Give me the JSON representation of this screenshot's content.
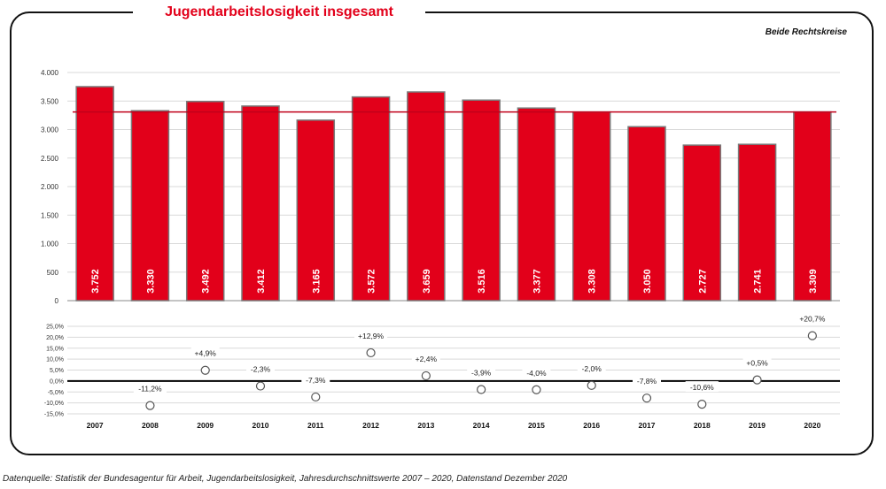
{
  "title": "Jugendarbeitslosigkeit insgesamt",
  "subtitle": "Beide Rechtskreise",
  "source": "Datenquelle: Statistik der Bundesagentur für Arbeit, Jugendarbeitslosigkeit, Jahresdurchschnittswerte 2007 – 2020, Datenstand Dezember 2020",
  "colors": {
    "bar": "#e2001a",
    "bar_edge": "#7a7a7a",
    "avg_line": "#c0001a",
    "grid": "#d9d9d9",
    "axis": "#333333"
  },
  "chart_data": [
    {
      "type": "bar",
      "categories": [
        "2007",
        "2008",
        "2009",
        "2010",
        "2011",
        "2012",
        "2013",
        "2014",
        "2015",
        "2016",
        "2017",
        "2018",
        "2019",
        "2020"
      ],
      "values": [
        3752,
        3330,
        3492,
        3412,
        3165,
        3572,
        3659,
        3516,
        3377,
        3308,
        3050,
        2727,
        2741,
        3309
      ],
      "value_labels": [
        "3.752",
        "3.330",
        "3.492",
        "3.412",
        "3.165",
        "3.572",
        "3.659",
        "3.516",
        "3.377",
        "3.308",
        "3.050",
        "2.727",
        "2.741",
        "3.309"
      ],
      "reference_line": 3309,
      "ylim": [
        0,
        4000
      ],
      "yticks": [
        0,
        500,
        1000,
        1500,
        2000,
        2500,
        3000,
        3500,
        4000
      ],
      "ytick_labels": [
        "0",
        "500",
        "1.000",
        "1.500",
        "2.000",
        "2.500",
        "3.000",
        "3.500",
        "4.000"
      ],
      "grid": true
    },
    {
      "type": "scatter",
      "categories": [
        "2007",
        "2008",
        "2009",
        "2010",
        "2011",
        "2012",
        "2013",
        "2014",
        "2015",
        "2016",
        "2017",
        "2018",
        "2019",
        "2020"
      ],
      "values": [
        null,
        -11.2,
        4.9,
        -2.3,
        -7.3,
        12.9,
        2.4,
        -3.9,
        -4.0,
        -2.0,
        -7.8,
        -10.6,
        0.5,
        20.7
      ],
      "value_labels": [
        "",
        "-11,2%",
        "+4,9%",
        "-2,3%",
        "-7,3%",
        "+12,9%",
        "+2,4%",
        "-3,9%",
        "-4,0%",
        "-2,0%",
        "-7,8%",
        "-10,6%",
        "+0,5%",
        "+20,7%"
      ],
      "ylim": [
        -15,
        25
      ],
      "yticks": [
        -15,
        -10,
        -5,
        0,
        5,
        10,
        15,
        20,
        25
      ],
      "ytick_labels": [
        "-15,0%",
        "-10,0%",
        "-5,0%",
        "0,0%",
        "5,0%",
        "10,0%",
        "15,0%",
        "20,0%",
        "25,0%"
      ],
      "grid": true
    }
  ]
}
